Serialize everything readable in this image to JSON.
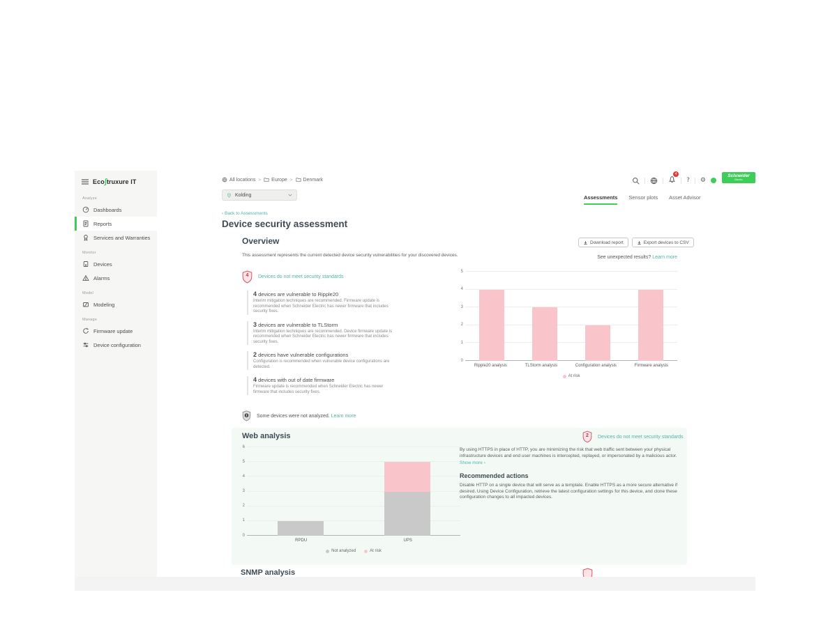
{
  "sidebar": {
    "logo": {
      "pre": "Eco",
      "glyph": "∫",
      "post": "truxure IT"
    },
    "sections": [
      {
        "label": "Analyze",
        "items": [
          {
            "label": "Dashboards",
            "icon": "dashboard-icon",
            "active": false
          },
          {
            "label": "Reports",
            "icon": "report-icon",
            "active": true
          },
          {
            "label": "Services and Warranties",
            "icon": "services-icon",
            "active": false
          }
        ]
      },
      {
        "label": "Monitor",
        "items": [
          {
            "label": "Devices",
            "icon": "device-icon",
            "active": false
          },
          {
            "label": "Alarms",
            "icon": "alarm-icon",
            "active": false
          }
        ]
      },
      {
        "label": "Model",
        "items": [
          {
            "label": "Modeling",
            "icon": "modeling-icon",
            "active": false
          }
        ]
      },
      {
        "label": "Manage",
        "items": [
          {
            "label": "Firmware update",
            "icon": "firmware-icon",
            "active": false
          },
          {
            "label": "Device configuration",
            "icon": "configuration-icon",
            "active": false
          }
        ]
      }
    ]
  },
  "header": {
    "breadcrumb": {
      "root": "All locations",
      "level1": "Europe",
      "level2": "Denmark",
      "separator": ">"
    },
    "location_selector": {
      "value": "Kolding"
    },
    "notifications": {
      "count": "4"
    },
    "brand": {
      "line1": "Schneider",
      "line2": "Electric"
    }
  },
  "icons": {
    "gear_glyph": "⚙",
    "help_glyph": "?",
    "back_chevron": "‹",
    "show_more_arrow": "›"
  },
  "tabs": {
    "items": [
      {
        "label": "Assessments",
        "active": true
      },
      {
        "label": "Sensor plots",
        "active": false
      },
      {
        "label": "Asset Advisor",
        "active": false
      }
    ]
  },
  "page": {
    "back_link": "Back to Assessments",
    "title": "Device security assessment"
  },
  "overview": {
    "heading": "Overview",
    "buttons": {
      "download": "Download report",
      "export": "Export devices to CSV"
    },
    "unexpected": {
      "text": "See unexpected results?",
      "link": "Learn more"
    },
    "description": "This assessment represents the current detected device security vulnerabilities for your discovered devices.",
    "badge": {
      "count": "4",
      "label": "Devices do not meet security standards"
    },
    "findings": [
      {
        "count": "4",
        "title": "devices are vulnerable to Ripple20",
        "description": "Interim mitigation techniques are recommended. Firmware update is recommended when Schneider Electric has newer firmware that includes security fixes."
      },
      {
        "count": "3",
        "title": "devices are vulnerable to TLStorm",
        "description": "Interim mitigation techniques are recommended. Device firmware update is recommended when Schneider Electric has newer firmware that includes security fixes."
      },
      {
        "count": "2",
        "title": "devices have vulnerable configurations",
        "description": "Configuration is recommended when vulnerable device configurations are detected."
      },
      {
        "count": "4",
        "title": "devices with out of date firmware",
        "description": "Firmware update is recommended when Schneider Electric has newer firmware that includes security fixes."
      }
    ],
    "not_analyzed": {
      "text": "Some devices were not analyzed.",
      "link": "Learn more"
    }
  },
  "chart_data": [
    {
      "type": "bar",
      "stacked": false,
      "categories": [
        "Ripple20 analysis",
        "TLStorm analysis",
        "Configuration analysis",
        "Firmware analysis"
      ],
      "series": [
        {
          "name": "At risk",
          "color": "#f9c5cb",
          "values": [
            4,
            3,
            2,
            4
          ]
        }
      ],
      "ylim": [
        0,
        5
      ],
      "yticks": [
        0,
        1,
        2,
        3,
        4,
        5
      ],
      "grid": true,
      "legend_position": "bottom"
    },
    {
      "type": "bar",
      "stacked": true,
      "categories": [
        "RPDU",
        "UPS"
      ],
      "series": [
        {
          "name": "Not analyzed",
          "color": "#c9c9c9",
          "values": [
            1,
            3
          ]
        },
        {
          "name": "At risk",
          "color": "#f9c5cb",
          "values": [
            0,
            2
          ]
        }
      ],
      "ylim": [
        0,
        6
      ],
      "yticks": [
        0,
        1,
        2,
        3,
        4,
        5,
        6
      ],
      "grid": true,
      "legend_position": "bottom"
    }
  ],
  "web_analysis": {
    "heading": "Web analysis",
    "badge": {
      "count": "2",
      "label": "Devices do not meet security standards"
    },
    "description": "By using HTTPS in place of HTTP, you are minimizing the risk that web traffic sent between your physical infrastructure devices and end user machines is intercepted, replayed, or impersonated by a malicious actor.",
    "show_more": "Show more",
    "recommended": {
      "heading": "Recommended actions",
      "text": "Disable HTTP on a single device that will serve as a template. Enable HTTPS as a more secure alternative if desired. Using Device Configuration, retrieve the latest configuration settings for this device, and clone these configuration changes to all impacted devices."
    }
  },
  "snmp": {
    "heading": "SNMP analysis"
  },
  "colors": {
    "accent_green": "#3dcd58",
    "link_teal": "#4fb3a8",
    "risk_pink": "#f9c5cb",
    "not_analyzed_gray": "#c9c9c9",
    "badge_red": "#da5568"
  }
}
